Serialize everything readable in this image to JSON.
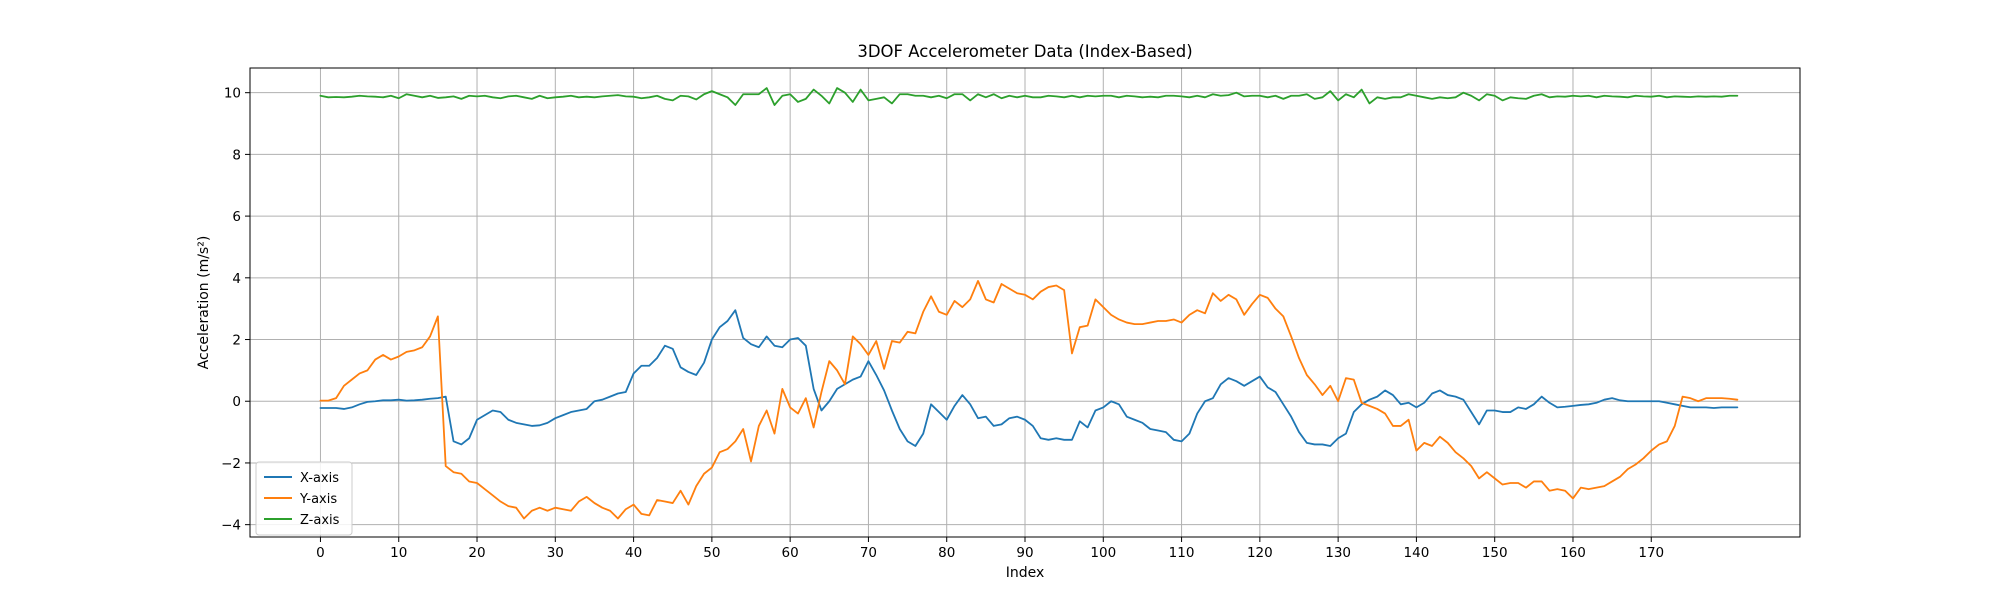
{
  "chart_data": {
    "type": "line",
    "title": "3DOF Accelerometer Data (Index-Based)",
    "xlabel": "Index",
    "ylabel": "Acceleration (m/s²)",
    "xlim": [
      -9,
      189
    ],
    "ylim": [
      -4.4,
      10.8
    ],
    "x_ticks": [
      0,
      10,
      20,
      30,
      40,
      50,
      60,
      70,
      80,
      90,
      100,
      110,
      120,
      130,
      140,
      150,
      160,
      170
    ],
    "y_ticks": [
      -4,
      -2,
      0,
      2,
      4,
      6,
      8,
      10
    ],
    "grid": true,
    "legend_position": "bottom-left",
    "series_sampling": "x = 0,1,2,…,179 (one value per index)",
    "series": [
      {
        "name": "X-axis",
        "color": "#1f77b4",
        "values": [
          -0.22,
          -0.22,
          -0.22,
          -0.25,
          -0.2,
          -0.1,
          -0.02,
          0.0,
          0.03,
          0.03,
          0.05,
          0.02,
          0.03,
          0.05,
          0.08,
          0.1,
          0.15,
          -1.3,
          -1.4,
          -1.2,
          -0.6,
          -0.45,
          -0.3,
          -0.35,
          -0.6,
          -0.7,
          -0.75,
          -0.8,
          -0.78,
          -0.7,
          -0.55,
          -0.45,
          -0.35,
          -0.3,
          -0.25,
          0.0,
          0.05,
          0.15,
          0.25,
          0.3,
          0.9,
          1.15,
          1.15,
          1.4,
          1.8,
          1.7,
          1.1,
          0.95,
          0.85,
          1.25,
          2.0,
          2.4,
          2.6,
          2.95,
          2.05,
          1.85,
          1.75,
          2.1,
          1.8,
          1.75,
          2.0,
          2.05,
          1.8,
          0.4,
          -0.3,
          0.0,
          0.4,
          0.55,
          0.7,
          0.8,
          1.3,
          0.85,
          0.35,
          -0.3,
          -0.9,
          -1.3,
          -1.45,
          -1.05,
          -0.1,
          -0.35,
          -0.6,
          -0.15,
          0.2,
          -0.1,
          -0.55,
          -0.5,
          -0.8,
          -0.75,
          -0.55,
          -0.5,
          -0.6,
          -0.8,
          -1.2,
          -1.25,
          -1.2,
          -1.25,
          -1.25,
          -0.65,
          -0.85,
          -0.3,
          -0.2,
          0.0,
          -0.1,
          -0.5,
          -0.6,
          -0.7,
          -0.9,
          -0.95,
          -1.0,
          -1.25,
          -1.3,
          -1.05,
          -0.4,
          0.0,
          0.1,
          0.55,
          0.75,
          0.65,
          0.5,
          0.65,
          0.8,
          0.45,
          0.3,
          -0.1,
          -0.5,
          -1.0,
          -1.35,
          -1.4,
          -1.4,
          -1.45,
          -1.2,
          -1.05,
          -0.35,
          -0.1,
          0.05,
          0.15,
          0.35,
          0.2,
          -0.1,
          -0.05,
          -0.2,
          -0.05,
          0.25,
          0.35,
          0.2,
          0.15,
          0.05,
          -0.35,
          -0.75,
          -0.3,
          -0.3,
          -0.35,
          -0.35,
          -0.2,
          -0.25,
          -0.1,
          0.15,
          -0.05,
          -0.2,
          -0.18,
          -0.15,
          -0.12,
          -0.1,
          -0.05,
          0.05,
          0.1,
          0.03,
          0.0,
          0.0,
          0.0,
          0.0,
          0.0,
          -0.05,
          -0.1,
          -0.15,
          -0.2,
          -0.2,
          -0.2,
          -0.22,
          -0.2,
          -0.2,
          -0.2
        ]
      },
      {
        "name": "Y-axis",
        "color": "#ff7f0e",
        "values": [
          0.02,
          0.02,
          0.1,
          0.5,
          0.7,
          0.9,
          1.0,
          1.35,
          1.5,
          1.35,
          1.45,
          1.6,
          1.65,
          1.75,
          2.1,
          2.75,
          -2.1,
          -2.3,
          -2.35,
          -2.6,
          -2.65,
          -2.85,
          -3.05,
          -3.25,
          -3.4,
          -3.45,
          -3.8,
          -3.55,
          -3.45,
          -3.55,
          -3.45,
          -3.5,
          -3.55,
          -3.25,
          -3.1,
          -3.3,
          -3.45,
          -3.55,
          -3.8,
          -3.5,
          -3.35,
          -3.65,
          -3.7,
          -3.2,
          -3.25,
          -3.3,
          -2.9,
          -3.35,
          -2.75,
          -2.35,
          -2.15,
          -1.65,
          -1.55,
          -1.3,
          -0.9,
          -1.95,
          -0.8,
          -0.3,
          -1.05,
          0.4,
          -0.2,
          -0.4,
          0.1,
          -0.85,
          0.3,
          1.3,
          1.0,
          0.55,
          2.1,
          1.85,
          1.5,
          1.95,
          1.05,
          1.95,
          1.9,
          2.25,
          2.2,
          2.9,
          3.4,
          2.9,
          2.8,
          3.25,
          3.05,
          3.3,
          3.9,
          3.3,
          3.2,
          3.8,
          3.65,
          3.5,
          3.45,
          3.3,
          3.55,
          3.7,
          3.75,
          3.6,
          1.55,
          2.4,
          2.45,
          3.3,
          3.05,
          2.8,
          2.65,
          2.55,
          2.5,
          2.5,
          2.55,
          2.6,
          2.6,
          2.65,
          2.55,
          2.8,
          2.95,
          2.85,
          3.5,
          3.25,
          3.45,
          3.3,
          2.8,
          3.15,
          3.45,
          3.35,
          3.0,
          2.75,
          2.1,
          1.4,
          0.85,
          0.55,
          0.2,
          0.5,
          0.0,
          0.75,
          0.7,
          -0.05,
          -0.15,
          -0.25,
          -0.4,
          -0.8,
          -0.8,
          -0.6,
          -1.6,
          -1.35,
          -1.45,
          -1.15,
          -1.35,
          -1.65,
          -1.85,
          -2.1,
          -2.5,
          -2.3,
          -2.5,
          -2.7,
          -2.65,
          -2.65,
          -2.8,
          -2.6,
          -2.6,
          -2.9,
          -2.85,
          -2.9,
          -3.15,
          -2.8,
          -2.85,
          -2.8,
          -2.75,
          -2.6,
          -2.45,
          -2.2,
          -2.05,
          -1.85,
          -1.6,
          -1.4,
          -1.3,
          -0.8,
          0.15,
          0.1,
          0.0,
          0.1,
          0.1,
          0.1,
          0.08,
          0.05
        ]
      },
      {
        "name": "Z-axis",
        "color": "#2ca02c",
        "values": [
          9.9,
          9.85,
          9.86,
          9.85,
          9.87,
          9.9,
          9.88,
          9.87,
          9.85,
          9.9,
          9.82,
          9.95,
          9.9,
          9.85,
          9.9,
          9.83,
          9.85,
          9.88,
          9.8,
          9.9,
          9.88,
          9.9,
          9.85,
          9.82,
          9.88,
          9.9,
          9.85,
          9.8,
          9.9,
          9.82,
          9.85,
          9.87,
          9.9,
          9.85,
          9.87,
          9.85,
          9.88,
          9.9,
          9.92,
          9.88,
          9.87,
          9.82,
          9.85,
          9.9,
          9.8,
          9.75,
          9.9,
          9.88,
          9.78,
          9.95,
          10.05,
          9.95,
          9.85,
          9.6,
          9.95,
          9.95,
          9.95,
          10.15,
          9.6,
          9.9,
          9.95,
          9.7,
          9.8,
          10.1,
          9.9,
          9.65,
          10.15,
          10.0,
          9.7,
          10.1,
          9.75,
          9.8,
          9.85,
          9.65,
          9.95,
          9.95,
          9.9,
          9.9,
          9.85,
          9.9,
          9.82,
          9.95,
          9.95,
          9.75,
          9.95,
          9.85,
          9.95,
          9.82,
          9.9,
          9.85,
          9.9,
          9.85,
          9.85,
          9.9,
          9.88,
          9.85,
          9.9,
          9.85,
          9.9,
          9.88,
          9.9,
          9.9,
          9.85,
          9.9,
          9.88,
          9.85,
          9.87,
          9.85,
          9.9,
          9.9,
          9.88,
          9.85,
          9.9,
          9.85,
          9.95,
          9.9,
          9.92,
          10.0,
          9.88,
          9.9,
          9.9,
          9.85,
          9.9,
          9.8,
          9.9,
          9.9,
          9.95,
          9.8,
          9.85,
          10.05,
          9.75,
          9.95,
          9.85,
          10.1,
          9.65,
          9.85,
          9.8,
          9.85,
          9.85,
          9.95,
          9.9,
          9.85,
          9.8,
          9.85,
          9.82,
          9.85,
          10.0,
          9.9,
          9.75,
          9.95,
          9.9,
          9.75,
          9.85,
          9.82,
          9.8,
          9.9,
          9.95,
          9.85,
          9.88,
          9.87,
          9.9,
          9.88,
          9.9,
          9.85,
          9.9,
          9.88,
          9.87,
          9.85,
          9.9,
          9.88,
          9.87,
          9.9,
          9.85,
          9.88,
          9.87,
          9.86,
          9.88,
          9.87,
          9.88,
          9.87,
          9.9,
          9.9
        ]
      }
    ]
  }
}
